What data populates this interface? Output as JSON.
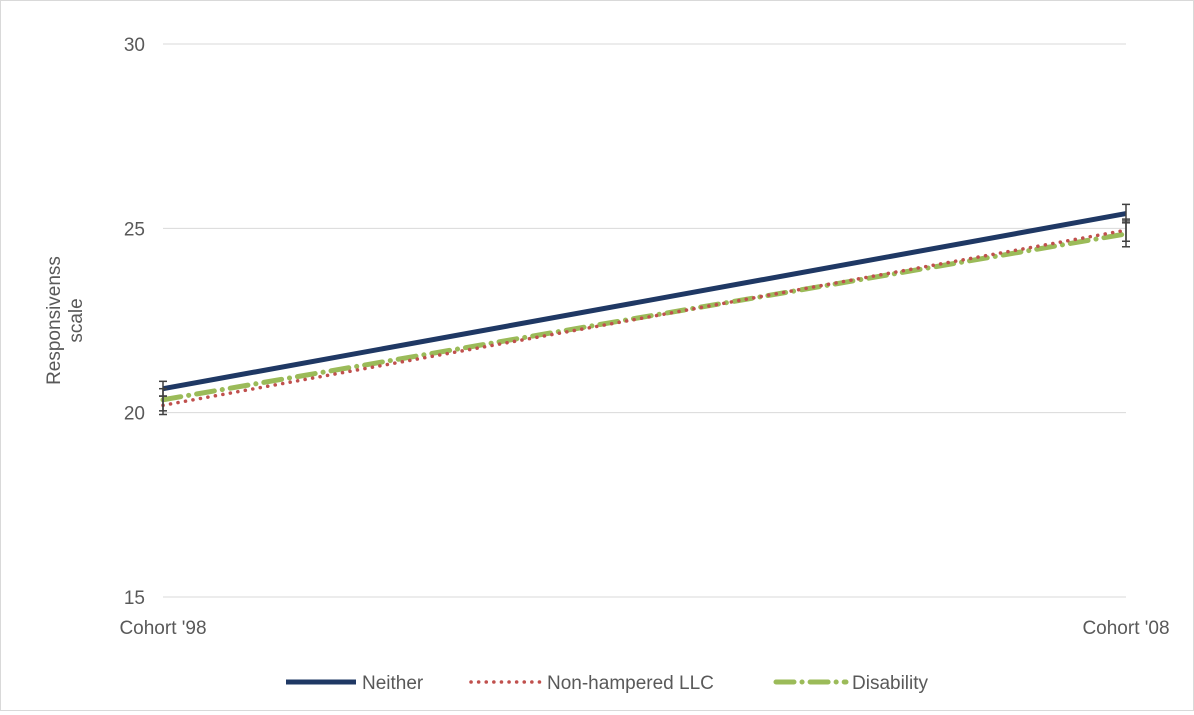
{
  "chart_data": {
    "type": "line",
    "title": "",
    "xlabel": "",
    "ylabel": "Responsivenss scale",
    "categories": [
      "Cohort '98",
      "Cohort '08"
    ],
    "y_ticks": [
      "15",
      "20",
      "25",
      "30"
    ],
    "ylim": [
      15,
      30
    ],
    "grid": true,
    "legend_position": "bottom",
    "series": [
      {
        "name": "Neither",
        "values": [
          20.65,
          25.4
        ],
        "error": [
          0.2,
          0.25
        ],
        "color": "#1f3864",
        "style": "solid"
      },
      {
        "name": "Non-hampered LLC",
        "values": [
          20.2,
          24.95
        ],
        "error": [
          0.25,
          0.3
        ],
        "color": "#c0504d",
        "style": "dotted"
      },
      {
        "name": "Disability",
        "values": [
          20.35,
          24.85
        ],
        "error": [
          0.3,
          0.35
        ],
        "color": "#9bbb59",
        "style": "dashdot"
      }
    ]
  }
}
